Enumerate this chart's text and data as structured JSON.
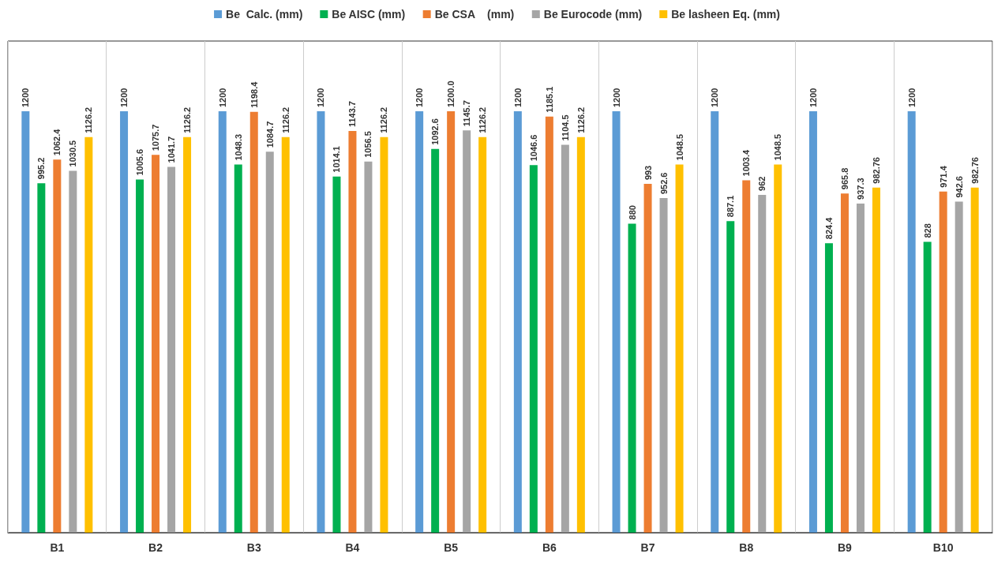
{
  "chart_data": {
    "type": "bar",
    "categories": [
      "B1",
      "B2",
      "B3",
      "B4",
      "B5",
      "B6",
      "B7",
      "B8",
      "B9",
      "B10"
    ],
    "series": [
      {
        "name": "Be  Calc. (mm)",
        "color": "#5b9bd5",
        "values": [
          1200,
          1200,
          1200,
          1200,
          1200,
          1200,
          1200,
          1200,
          1200,
          1200
        ],
        "value_labels": [
          "1200",
          "1200",
          "1200",
          "1200",
          "1200",
          "1200",
          "1200",
          "1200",
          "1200",
          "1200"
        ]
      },
      {
        "name": "Be AISC (mm)",
        "color": "#00b050",
        "values": [
          995.2,
          1005.6,
          1048.3,
          1014.1,
          1092.6,
          1046.6,
          880,
          887.1,
          824.4,
          828
        ],
        "value_labels": [
          "995.2",
          "1005.6",
          "1048.3",
          "1014.1",
          "1092.6",
          "1046.6",
          "880",
          "887.1",
          "824.4",
          "828"
        ]
      },
      {
        "name": "Be CSA    (mm)",
        "color": "#ed7d31",
        "values": [
          1062.4,
          1075.7,
          1198.4,
          1143.7,
          1200.0,
          1185.1,
          993,
          1003.4,
          965.8,
          971.4
        ],
        "value_labels": [
          "1062.4",
          "1075.7",
          "1198.4",
          "1143.7",
          "1200.0",
          "1185.1",
          "993",
          "1003.4",
          "965.8",
          "971.4"
        ]
      },
      {
        "name": "Be Eurocode (mm)",
        "color": "#a5a5a5",
        "values": [
          1030.5,
          1041.7,
          1084.7,
          1056.5,
          1145.7,
          1104.5,
          952.6,
          962,
          937.3,
          942.6
        ],
        "value_labels": [
          "1030.5",
          "1041.7",
          "1084.7",
          "1056.5",
          "1145.7",
          "1104.5",
          "952.6",
          "962",
          "937.3",
          "942.6"
        ]
      },
      {
        "name": "Be lasheen Eq. (mm)",
        "color": "#ffc000",
        "values": [
          1126.2,
          1126.2,
          1126.2,
          1126.2,
          1126.2,
          1126.2,
          1048.5,
          1048.5,
          982.76,
          982.76
        ],
        "value_labels": [
          "1126.2",
          "1126.2",
          "1126.2",
          "1126.2",
          "1126.2",
          "1126.2",
          "1048.5",
          "1048.5",
          "982.76",
          "982.76"
        ]
      }
    ],
    "ylim": [
      0,
      1400
    ],
    "tick_labels": "x",
    "grid": "x",
    "legend": "top"
  }
}
